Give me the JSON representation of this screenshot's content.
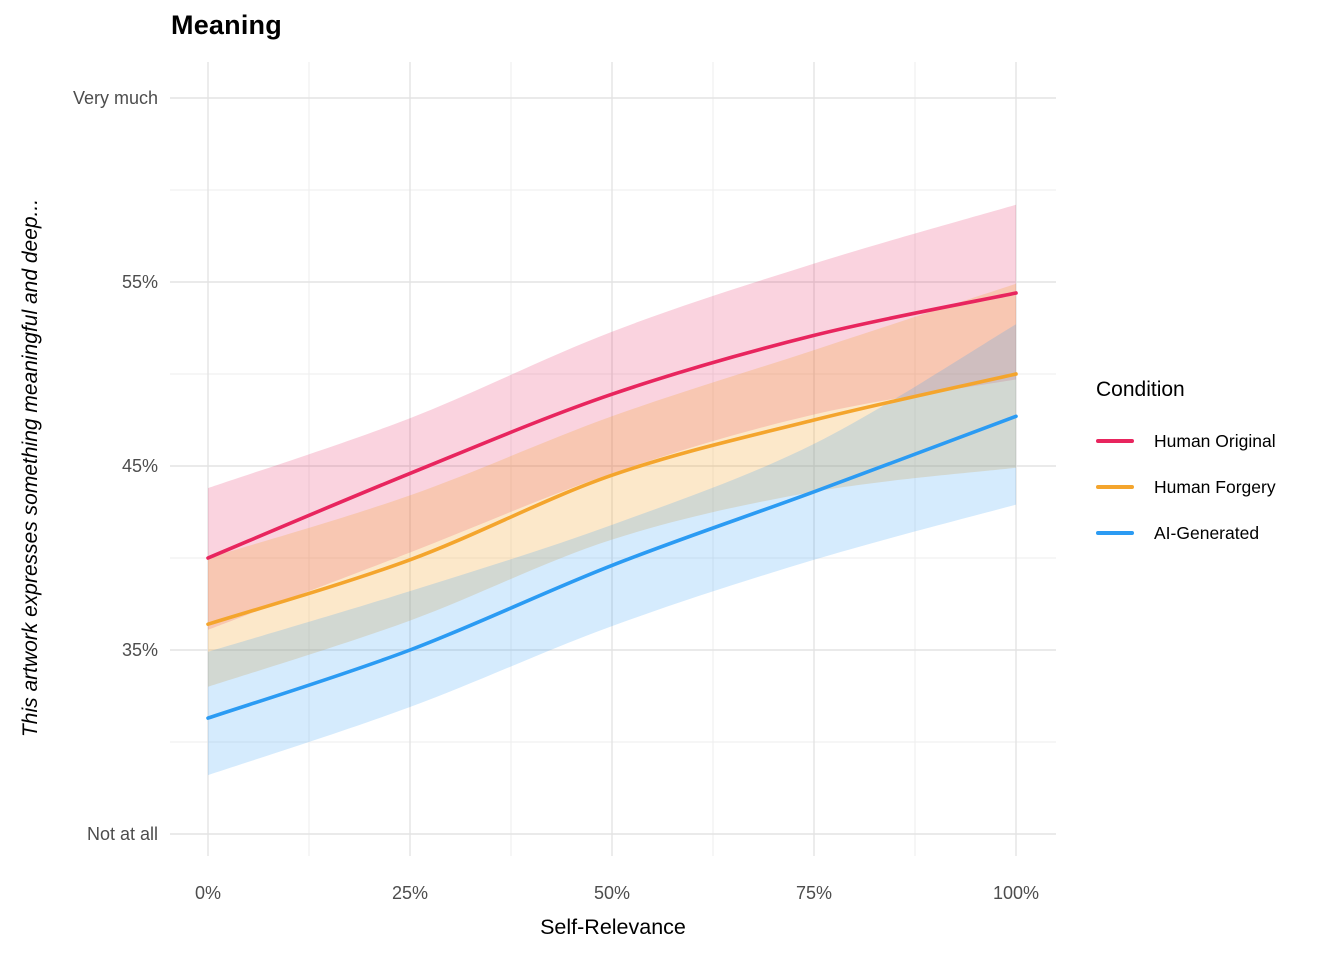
{
  "chart_data": {
    "type": "line",
    "title": "Meaning",
    "x_axis": {
      "title": "Self-Relevance",
      "range": [
        0,
        100
      ],
      "ticks": [
        {
          "label": "0%",
          "value": 0
        },
        {
          "label": "25%",
          "value": 25
        },
        {
          "label": "50%",
          "value": 50
        },
        {
          "label": "75%",
          "value": 75
        },
        {
          "label": "100%",
          "value": 100
        }
      ],
      "minor_values": [
        12.5,
        37.5,
        62.5,
        87.5
      ]
    },
    "y_axis": {
      "title": "This artwork expresses something meaningful and deep...",
      "ticks": [
        {
          "label": "Very much",
          "value": 65
        },
        {
          "label": "55%",
          "value": 55
        },
        {
          "label": "45%",
          "value": 45
        },
        {
          "label": "35%",
          "value": 35
        },
        {
          "label": "Not at all",
          "value": 25
        }
      ],
      "minor_values": [
        30,
        40,
        50,
        60
      ]
    },
    "legend": {
      "title": "Condition",
      "position": "right"
    },
    "grid": {
      "major_color": "#e3e3e3",
      "minor_color": "#eeeeee",
      "grid_on": true
    },
    "colors": {
      "tick_text": "#4d4d4d",
      "title_text": "#000000"
    },
    "series": [
      {
        "name": "Human Original",
        "color": "#E8255E",
        "band_opacity": 0.2,
        "x": [
          0,
          25,
          50,
          75,
          100
        ],
        "mean": [
          40.0,
          44.6,
          48.9,
          52.1,
          54.4
        ],
        "lower": [
          36.1,
          40.3,
          44.6,
          47.8,
          49.7
        ],
        "upper": [
          43.8,
          47.6,
          52.3,
          56.0,
          59.2
        ]
      },
      {
        "name": "Human Forgery",
        "color": "#F4A52D",
        "band_opacity": 0.25,
        "x": [
          0,
          25,
          50,
          75,
          100
        ],
        "mean": [
          36.4,
          39.9,
          44.5,
          47.5,
          50.0
        ],
        "lower": [
          33.0,
          36.6,
          41.0,
          43.6,
          44.9
        ],
        "upper": [
          40.0,
          43.4,
          47.7,
          51.3,
          54.9
        ]
      },
      {
        "name": "AI-Generated",
        "color": "#2B9BF3",
        "band_opacity": 0.2,
        "x": [
          0,
          25,
          50,
          75,
          100
        ],
        "mean": [
          31.3,
          35.0,
          39.6,
          43.6,
          47.7
        ],
        "lower": [
          28.2,
          31.9,
          36.3,
          39.9,
          42.9
        ],
        "upper": [
          34.9,
          38.2,
          41.8,
          46.2,
          52.7
        ]
      }
    ]
  }
}
